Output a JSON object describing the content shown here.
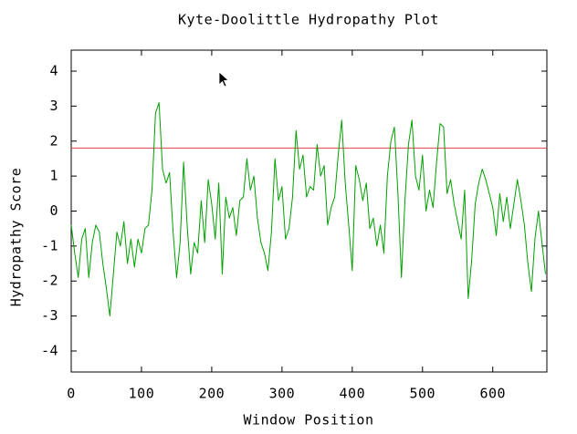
{
  "chart_data": {
    "type": "line",
    "title": "Kyte-Doolittle Hydropathy Plot",
    "x_label": "Window Position",
    "y_label": "Hydropathy Score",
    "xlim": [
      0,
      677
    ],
    "ylim": [
      -4.6,
      4.6
    ],
    "xticks": [
      0,
      100,
      200,
      300,
      400,
      500,
      600
    ],
    "yticks": [
      -4,
      -3,
      -2,
      -1,
      0,
      1,
      2,
      3,
      4
    ],
    "reference_line": 1.8,
    "reference_color": "#e04040",
    "x": [
      0,
      5,
      10,
      15,
      20,
      25,
      30,
      35,
      40,
      45,
      50,
      55,
      60,
      65,
      70,
      75,
      80,
      85,
      90,
      95,
      100,
      105,
      110,
      115,
      120,
      125,
      130,
      135,
      140,
      145,
      150,
      155,
      160,
      165,
      170,
      175,
      180,
      185,
      190,
      195,
      200,
      205,
      210,
      215,
      220,
      225,
      230,
      235,
      240,
      245,
      250,
      255,
      260,
      265,
      270,
      275,
      280,
      285,
      290,
      295,
      300,
      305,
      310,
      315,
      320,
      325,
      330,
      335,
      340,
      345,
      350,
      355,
      360,
      365,
      370,
      375,
      380,
      385,
      390,
      395,
      400,
      405,
      410,
      415,
      420,
      425,
      430,
      435,
      440,
      445,
      450,
      455,
      460,
      465,
      470,
      475,
      480,
      485,
      490,
      495,
      500,
      505,
      510,
      515,
      520,
      525,
      530,
      535,
      540,
      545,
      550,
      555,
      560,
      565,
      570,
      575,
      580,
      585,
      590,
      595,
      600,
      605,
      610,
      615,
      620,
      625,
      630,
      635,
      640,
      645,
      650,
      655,
      660,
      665,
      670,
      675
    ],
    "series": [
      {
        "color": "#00a000",
        "values": [
          -0.4,
          -1.2,
          -1.9,
          -0.8,
          -0.5,
          -1.9,
          -0.9,
          -0.4,
          -0.6,
          -1.5,
          -2.2,
          -3.0,
          -1.8,
          -0.6,
          -1.0,
          -0.3,
          -1.5,
          -0.8,
          -1.6,
          -0.8,
          -1.2,
          -0.5,
          -0.4,
          0.6,
          2.8,
          3.1,
          1.2,
          0.8,
          1.1,
          -0.6,
          -1.9,
          -0.9,
          1.4,
          -0.4,
          -1.8,
          -0.9,
          -1.2,
          0.3,
          -0.9,
          0.9,
          0.2,
          -0.8,
          0.8,
          -1.8,
          0.4,
          -0.2,
          0.1,
          -0.7,
          0.3,
          0.4,
          1.5,
          0.6,
          1.0,
          -0.2,
          -0.9,
          -1.2,
          -1.7,
          -0.6,
          1.5,
          0.3,
          0.7,
          -0.8,
          -0.5,
          0.4,
          2.3,
          1.2,
          1.6,
          0.4,
          0.7,
          0.6,
          1.9,
          1.0,
          1.3,
          -0.4,
          0.1,
          0.4,
          1.6,
          2.6,
          0.8,
          -0.4,
          -1.7,
          1.3,
          0.9,
          0.3,
          0.8,
          -0.5,
          -0.2,
          -1.0,
          -0.4,
          -1.2,
          1.0,
          2.0,
          2.4,
          0.5,
          -1.9,
          0.3,
          1.9,
          2.6,
          1.0,
          0.6,
          1.6,
          0.0,
          0.6,
          0.1,
          1.4,
          2.5,
          2.4,
          0.5,
          0.9,
          0.2,
          -0.3,
          -0.8,
          0.6,
          -2.5,
          -1.4,
          0.2,
          0.8,
          1.2,
          0.9,
          0.5,
          0.1,
          -0.7,
          0.5,
          -0.3,
          0.4,
          -0.5,
          0.2,
          0.9,
          0.3,
          -0.4,
          -1.5,
          -2.3,
          -0.8,
          0.0,
          -0.9,
          -1.8
        ]
      }
    ]
  }
}
